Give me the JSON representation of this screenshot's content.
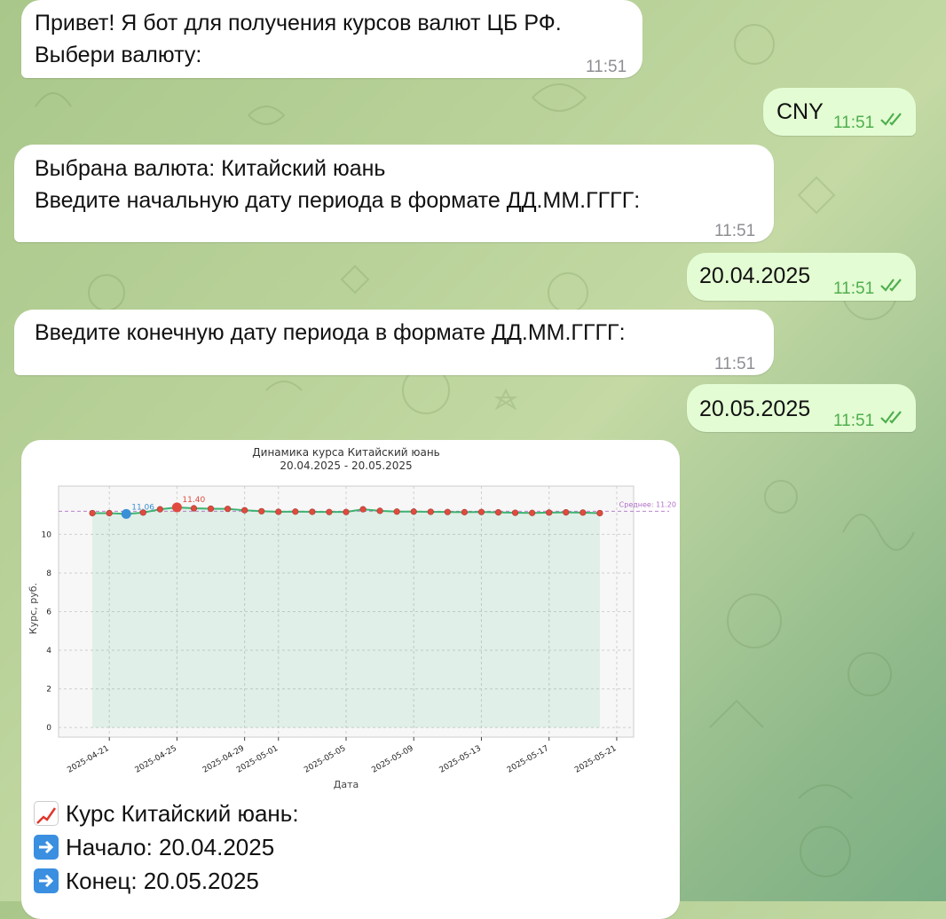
{
  "theme": {
    "outgoing_bubble": "#e3fcd3",
    "incoming_bubble": "#ffffff",
    "time_outgoing": "#4fae4e",
    "time_incoming": "#8e8e93"
  },
  "messages": [
    {
      "dir": "in",
      "text": "Привет! Я бот для получения курсов валют ЦБ РФ.\nВыбери валюту:",
      "time": "11:51"
    },
    {
      "dir": "out",
      "text": "CNY",
      "time": "11:51",
      "status": "read"
    },
    {
      "dir": "in",
      "text": "Выбрана валюта: Китайский юань\nВведите начальную дату периода в формате ДД.ММ.ГГГГ:",
      "time": "11:51"
    },
    {
      "dir": "out",
      "text": "20.04.2025",
      "time": "11:51",
      "status": "read"
    },
    {
      "dir": "in",
      "text": "Введите конечную дату периода в формате ДД.ММ.ГГГГ:",
      "time": "11:51"
    },
    {
      "dir": "out",
      "text": "20.05.2025",
      "time": "11:51",
      "status": "read"
    }
  ],
  "photo_caption": {
    "line1_icon": "chart-increasing-icon",
    "line1": "Курс Китайский юань:",
    "line2_icon": "right-arrow-icon",
    "line2": "Начало: 20.04.2025",
    "line3_icon": "right-arrow-icon",
    "line3": "Конец: 20.05.2025"
  },
  "chart_data": {
    "type": "line",
    "title": "Динамика курса Китайский юань",
    "subtitle": "20.04.2025 - 20.05.2025",
    "xlabel": "Дата",
    "ylabel": "Курс, руб.",
    "ylim": [
      -0.5,
      12.5
    ],
    "yticks": [
      "0",
      "2",
      "4",
      "6",
      "8",
      "10"
    ],
    "xticks": [
      "2025-04-21",
      "2025-04-25",
      "2025-04-29",
      "2025-05-01",
      "2025-05-05",
      "2025-05-09",
      "2025-05-13",
      "2025-05-17",
      "2025-05-21"
    ],
    "grid": true,
    "fill_area": true,
    "line_color": "#3cb371",
    "marker_color": "#e04a3f",
    "min_color": "#3a8fd6",
    "mean_color": "#b070c8",
    "series": [
      {
        "x": [
          "2025-04-20",
          "2025-04-21",
          "2025-04-22",
          "2025-04-23",
          "2025-04-24",
          "2025-04-25",
          "2025-04-26",
          "2025-04-27",
          "2025-04-28",
          "2025-04-29",
          "2025-04-30",
          "2025-05-01",
          "2025-05-02",
          "2025-05-03",
          "2025-05-04",
          "2025-05-05",
          "2025-05-06",
          "2025-05-07",
          "2025-05-08",
          "2025-05-09",
          "2025-05-10",
          "2025-05-11",
          "2025-05-12",
          "2025-05-13",
          "2025-05-14",
          "2025-05-15",
          "2025-05-16",
          "2025-05-17",
          "2025-05-18",
          "2025-05-19",
          "2025-05-20"
        ],
        "values": [
          11.1,
          11.1,
          11.06,
          11.13,
          11.3,
          11.4,
          11.35,
          11.33,
          11.32,
          11.25,
          11.2,
          11.17,
          11.18,
          11.17,
          11.16,
          11.16,
          11.3,
          11.22,
          11.18,
          11.18,
          11.17,
          11.16,
          11.15,
          11.16,
          11.14,
          11.12,
          11.11,
          11.13,
          11.14,
          11.13,
          11.1
        ]
      }
    ],
    "annotations": {
      "min_label": "11.06",
      "max_label": "11.40",
      "mean_label": "Среднее: 11.20",
      "mean_value": 11.2
    }
  }
}
